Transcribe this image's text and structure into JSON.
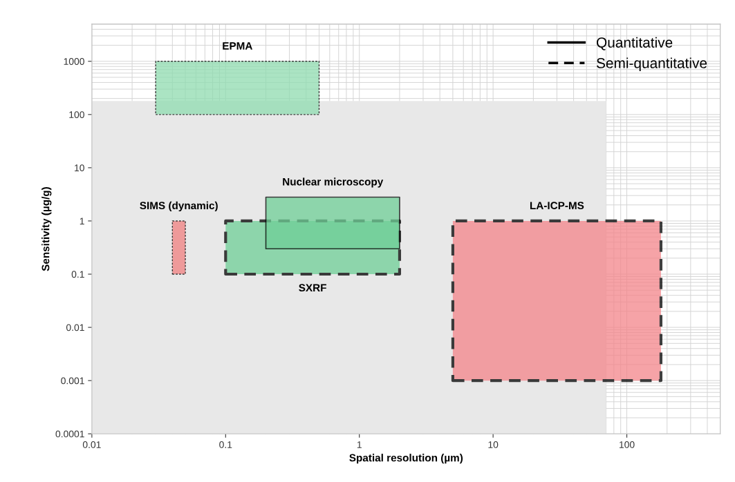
{
  "chart_data": {
    "type": "area",
    "xlabel": "Spatial resolution (µm)",
    "ylabel": "Sensitivity (µg/g)",
    "log": "xy",
    "xlim": [
      0.01,
      500
    ],
    "ylim": [
      0.0001,
      5000
    ],
    "xticks": [
      0.01,
      0.1,
      1,
      10,
      100
    ],
    "yticks": [
      0.0001,
      0.001,
      0.01,
      0.1,
      1,
      10,
      100,
      1000
    ],
    "grid": true,
    "legend": "top right",
    "series": [
      {
        "color": "#e8e8e8",
        "x": [
          0.01,
          70,
          70,
          0.01,
          0.01
        ],
        "values": [
          0.0001,
          0.0001,
          180,
          180,
          0.0001
        ]
      },
      {
        "name": "EPMA",
        "color": "#8fdcb0",
        "line_style": "dotted",
        "x": [
          0.03,
          0.5,
          0.5,
          0.03,
          0.03
        ],
        "values": [
          100,
          100,
          1000,
          1000,
          100
        ]
      },
      {
        "name": "SIMS (dynamic)",
        "color": "#f08080",
        "line_style": "dotted",
        "x": [
          0.04,
          0.05,
          0.05,
          0.04,
          0.04
        ],
        "values": [
          0.1,
          0.1,
          1,
          1,
          0.1
        ]
      },
      {
        "name": "SXRF",
        "color": "#6fcf97",
        "line_style": "dashed",
        "x": [
          0.1,
          2,
          2,
          0.1,
          0.1
        ],
        "values": [
          0.1,
          0.1,
          1,
          1,
          0.1
        ]
      },
      {
        "name": "Nuclear microscopy",
        "color": "#6fcf97",
        "line_style": "solid",
        "x": [
          0.2,
          2,
          2,
          0.2,
          0.2
        ],
        "values": [
          0.3,
          0.3,
          2.8,
          2.8,
          0.3
        ]
      },
      {
        "name": "LA-ICP-MS",
        "color": "#f4858a",
        "line_style": "dashed",
        "x": [
          5,
          180,
          180,
          5,
          5
        ],
        "values": [
          0.001,
          0.001,
          1,
          1,
          0.001
        ]
      },
      {
        "type": "line",
        "name": "Quantitative",
        "color": "#000000",
        "line_style": "solid"
      },
      {
        "type": "line",
        "name": "Semi-quantitative",
        "color": "#000000",
        "line_style": "dashed"
      }
    ]
  }
}
